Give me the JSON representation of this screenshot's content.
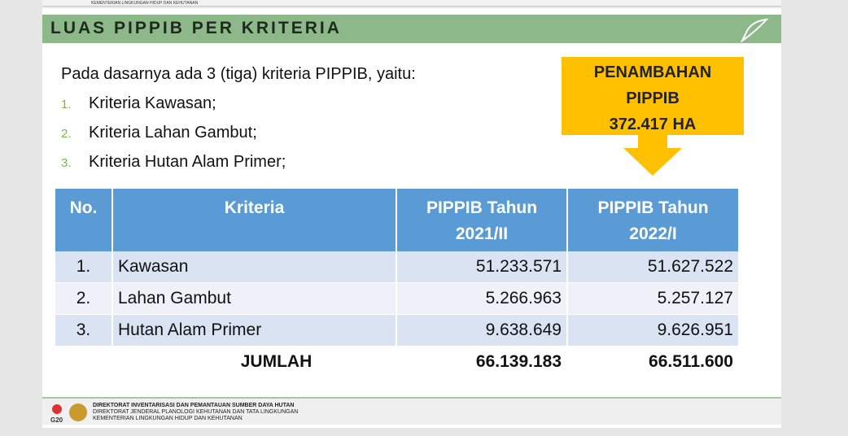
{
  "top_strip": "KEMENTERIAN LINGKUNGAN HIDUP DAN KEHUTANAN",
  "header": {
    "title": "LUAS PIPPIB PER KRITERIA"
  },
  "intro": "Pada dasarnya ada 3 (tiga) kriteria PIPPIB, yaitu:",
  "criteria": [
    {
      "number": "1.",
      "text": "Kriteria Kawasan;"
    },
    {
      "number": "2.",
      "text": "Kriteria Lahan Gambut;"
    },
    {
      "number": "3.",
      "text": "Kriteria Hutan Alam Primer;"
    }
  ],
  "callout": [
    "PENAMBAHAN",
    "PIPPIB",
    "372.417 HA"
  ],
  "table": {
    "columns": [
      "No.",
      "Kriteria",
      [
        "PIPPIB Tahun",
        "2021/II"
      ],
      [
        "PIPPIB Tahun",
        "2022/I"
      ]
    ],
    "rows": [
      [
        "1.",
        "Kawasan",
        "51.233.571",
        "51.627.522"
      ],
      [
        "2.",
        "Lahan Gambut",
        "5.266.963",
        "5.257.127"
      ],
      [
        "3.",
        "Hutan Alam Primer",
        "9.638.649",
        "9.626.951"
      ]
    ],
    "total": {
      "label": "JUMLAH",
      "values": [
        "66.139.183",
        "66.511.600"
      ]
    }
  },
  "footer": {
    "logo": "G20",
    "lines": [
      "DIREKTORAT INVENTARISASI DAN PEMANTAUAN SUMBER DAYA HUTAN",
      "DIREKTORAT JENDERAL PLANOLOGI KEHUTANAN DAN TATA LINGKUNGAN",
      "KEMENTERIAN LINGKUNGAN HIDUP DAN KEHUTANAN"
    ]
  }
}
